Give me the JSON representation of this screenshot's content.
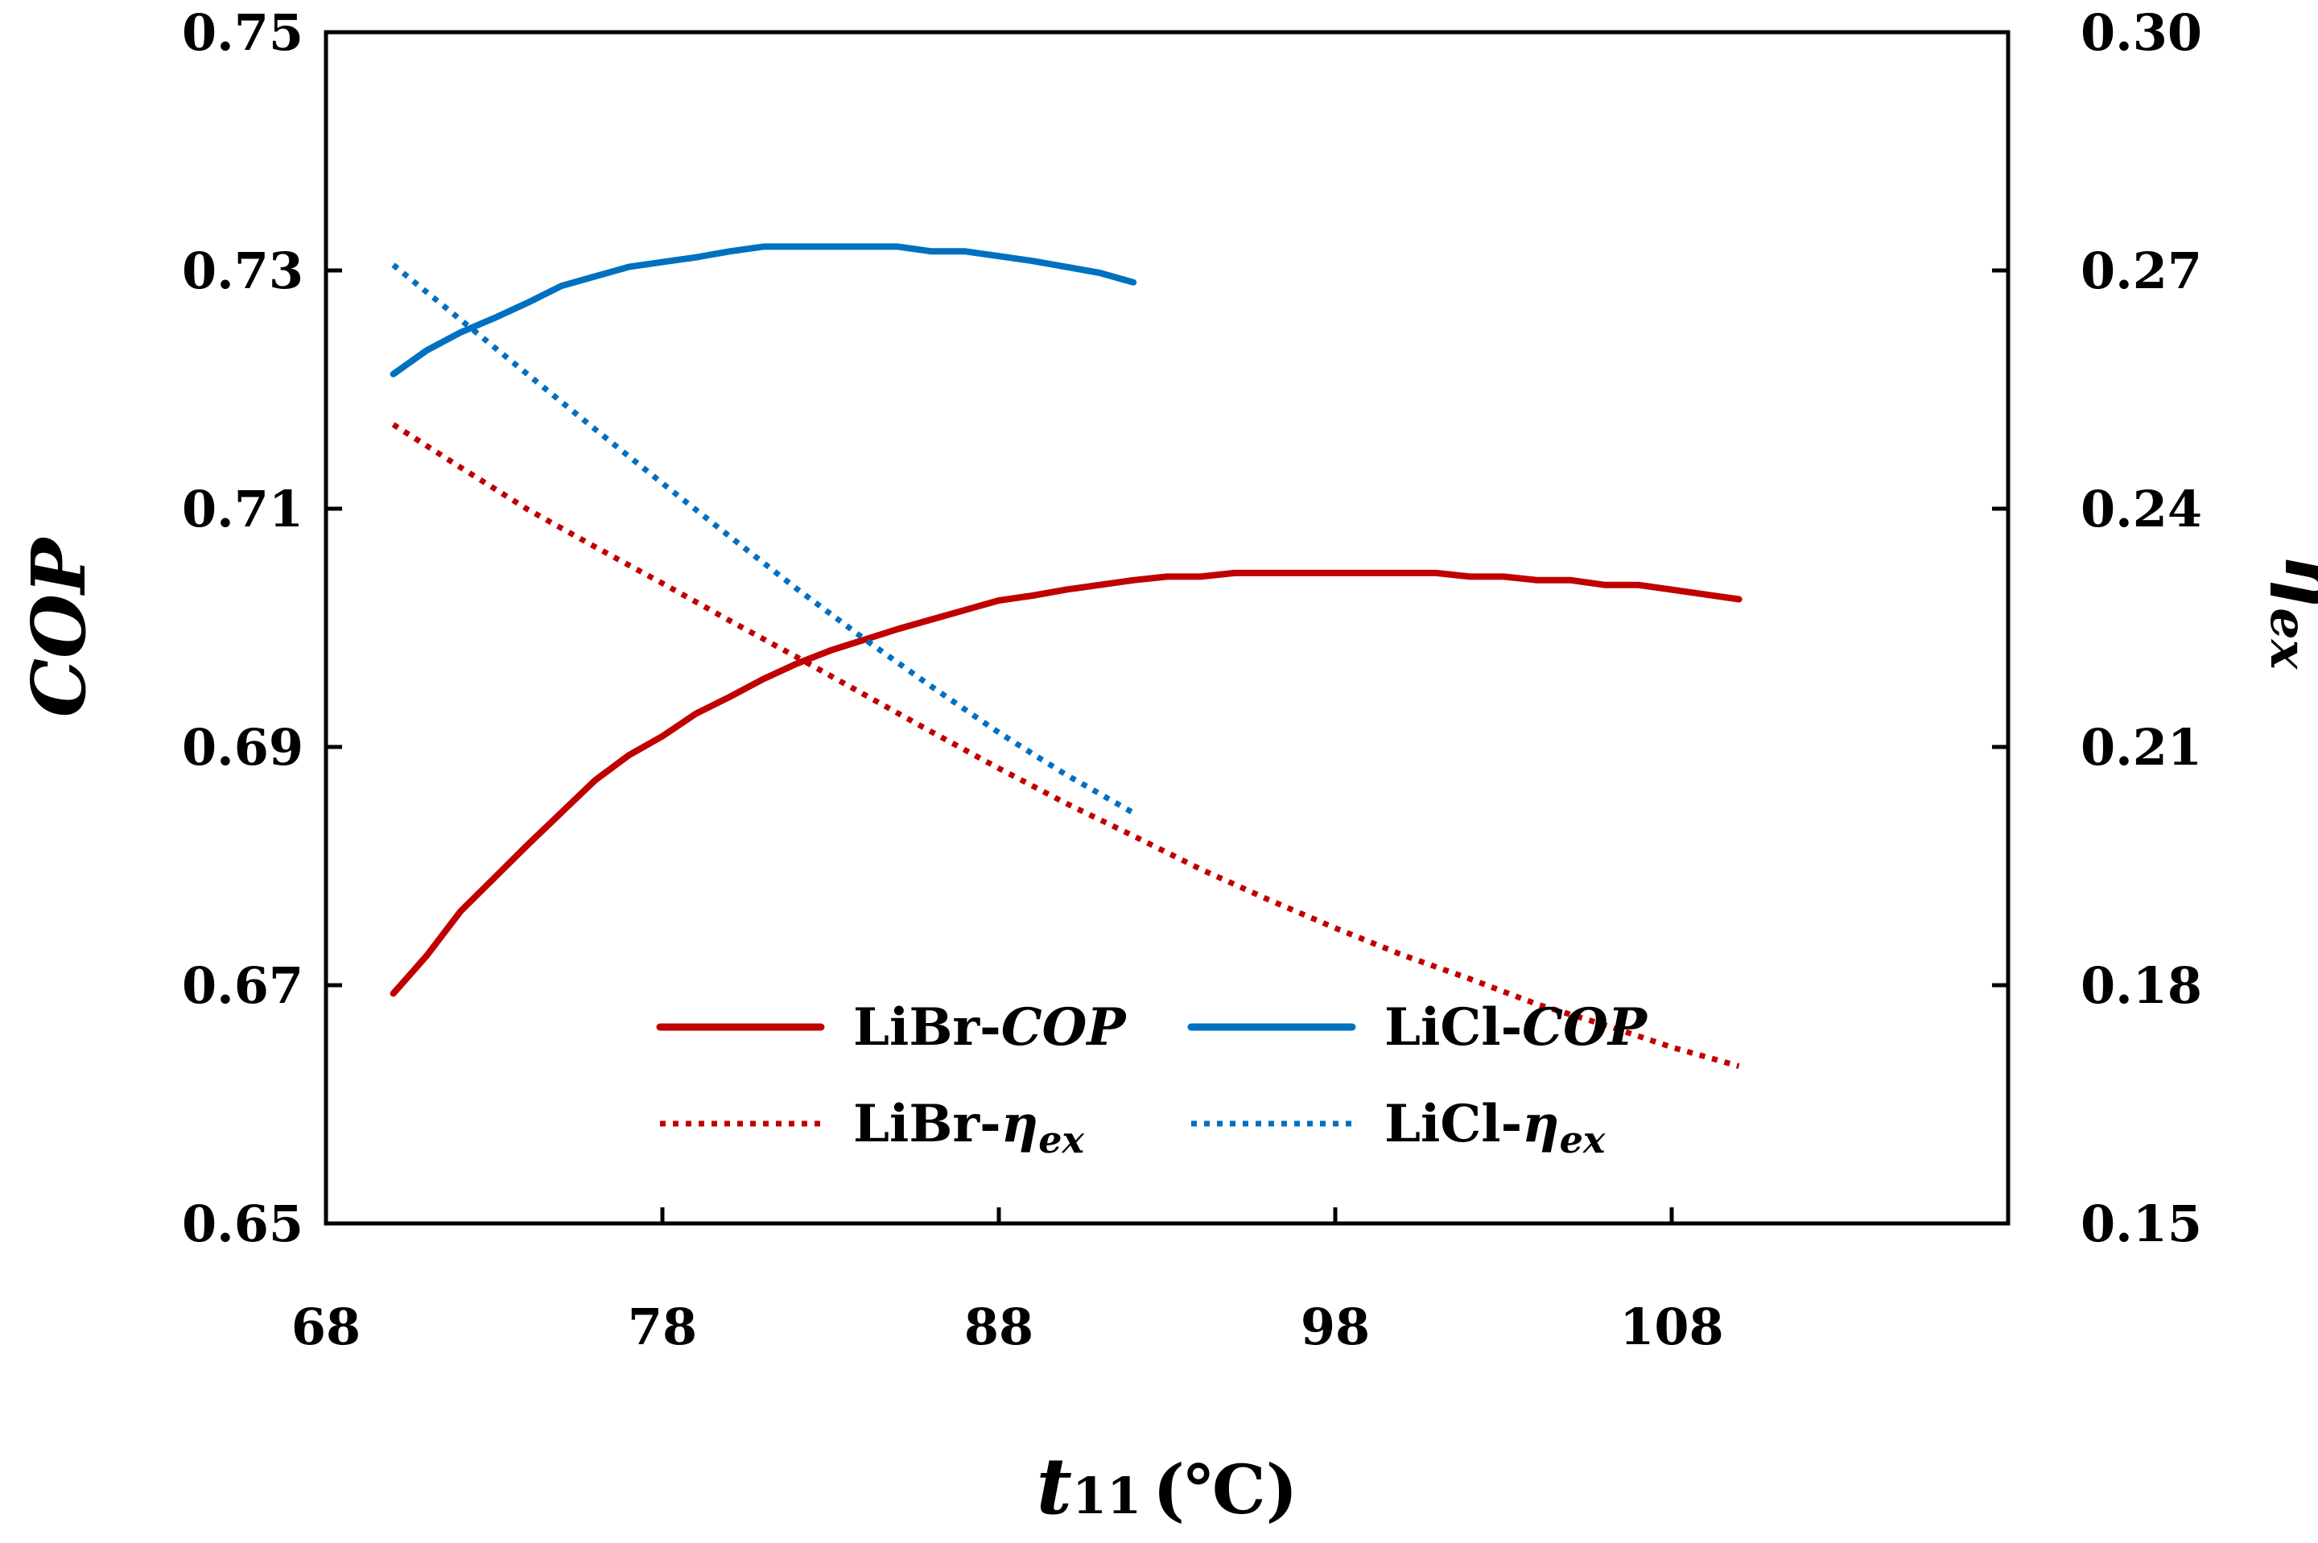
{
  "chart_data": {
    "type": "line",
    "xlabel": "t11 (℃)",
    "xlabel_main": "t",
    "xlabel_sub": "11",
    "xlabel_unit": "(℃)",
    "ylabel_left": "COP",
    "ylabel_right": "ηex",
    "xlim": [
      68,
      118
    ],
    "x_ticks": [
      "68",
      "78",
      "88",
      "98",
      "108"
    ],
    "ylim_left": [
      0.65,
      0.75
    ],
    "y_ticks_left": [
      "0.65",
      "0.67",
      "0.69",
      "0.71",
      "0.73",
      "0.75"
    ],
    "ylim_right": [
      0.15,
      0.3
    ],
    "y_ticks_right": [
      "0.15",
      "0.18",
      "0.21",
      "0.24",
      "0.27",
      "0.30"
    ],
    "grid": false,
    "legend_position": "bottom-center",
    "series": [
      {
        "name": "LiBr-COP",
        "name_prefix": "LiBr-",
        "name_main": "COP",
        "name_sub": "",
        "axis": "left",
        "style": "solid",
        "color": "#C00000",
        "x": [
          70,
          71,
          72,
          73,
          74,
          75,
          76,
          77,
          78,
          79,
          80,
          81,
          82,
          83,
          84,
          85,
          86,
          87,
          88,
          89,
          90,
          91,
          92,
          93,
          94,
          95,
          96,
          97,
          98,
          99,
          100,
          101,
          102,
          103,
          104,
          105,
          106,
          107,
          108,
          109,
          110
        ],
        "y": [
          0.6693,
          0.6725,
          0.6762,
          0.679,
          0.6818,
          0.6845,
          0.6872,
          0.6893,
          0.6909,
          0.6928,
          0.6942,
          0.6957,
          0.697,
          0.6981,
          0.699,
          0.6999,
          0.7007,
          0.7015,
          0.7023,
          0.7027,
          0.7032,
          0.7036,
          0.704,
          0.7043,
          0.7043,
          0.7046,
          0.7046,
          0.7046,
          0.7046,
          0.7046,
          0.7046,
          0.7046,
          0.7043,
          0.7043,
          0.704,
          0.704,
          0.7036,
          0.7036,
          0.7032,
          0.7028,
          0.7024
        ]
      },
      {
        "name": "LiCl-COP",
        "name_prefix": "LiCl-",
        "name_main": "COP",
        "name_sub": "",
        "axis": "left",
        "style": "solid",
        "color": "#0070C0",
        "x": [
          70,
          71,
          72,
          73,
          74,
          75,
          76,
          77,
          78,
          79,
          80,
          81,
          82,
          83,
          84,
          85,
          86,
          87,
          88,
          89,
          90,
          91,
          92
        ],
        "y": [
          0.7213,
          0.7233,
          0.7248,
          0.726,
          0.7273,
          0.7287,
          0.7295,
          0.7303,
          0.7307,
          0.7311,
          0.7316,
          0.732,
          0.732,
          0.732,
          0.732,
          0.732,
          0.7316,
          0.7316,
          0.7312,
          0.7308,
          0.7303,
          0.7298,
          0.729
        ]
      },
      {
        "name": "LiBr-ηex",
        "name_prefix": "LiBr-",
        "name_main": "η",
        "name_sub": "ex",
        "axis": "right",
        "style": "dotted",
        "color": "#C00000",
        "x": [
          70,
          72,
          74,
          76,
          78,
          80,
          82,
          84,
          86,
          88,
          90,
          92,
          94,
          96,
          98,
          100,
          102,
          104,
          106,
          108,
          110
        ],
        "y": [
          0.2506,
          0.2452,
          0.2399,
          0.2352,
          0.2306,
          0.2259,
          0.2213,
          0.2166,
          0.2119,
          0.2073,
          0.2029,
          0.1988,
          0.1946,
          0.1908,
          0.1872,
          0.1838,
          0.1808,
          0.1776,
          0.175,
          0.1722,
          0.1698
        ]
      },
      {
        "name": "LiCl-ηex",
        "name_prefix": "LiCl-",
        "name_main": "η",
        "name_sub": "ex",
        "axis": "right",
        "style": "dotted",
        "color": "#0070C0",
        "x": [
          70,
          72,
          74,
          76,
          78,
          80,
          82,
          84,
          86,
          88,
          90,
          92
        ],
        "y": [
          0.2707,
          0.2638,
          0.2569,
          0.25,
          0.2432,
          0.2365,
          0.2299,
          0.2236,
          0.2176,
          0.2118,
          0.2065,
          0.2017
        ]
      }
    ]
  }
}
